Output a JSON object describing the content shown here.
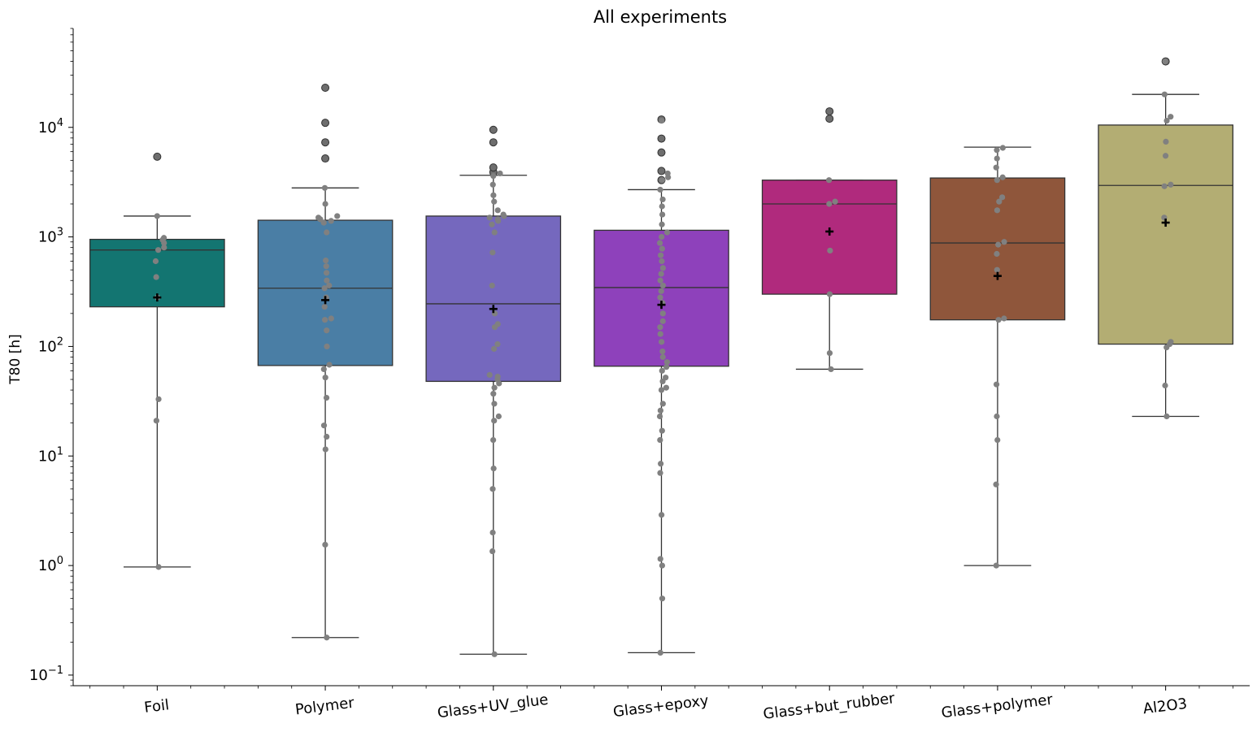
{
  "chart_data": {
    "type": "box",
    "title": "All experiments",
    "xlabel": "",
    "ylabel": "T80 [h]",
    "yscale": "log",
    "ylim": [
      0.08,
      80000
    ],
    "yticks": [
      {
        "value": 0.1,
        "base": "10",
        "exp": "−1"
      },
      {
        "value": 1,
        "base": "10",
        "exp": "0"
      },
      {
        "value": 10,
        "base": "10",
        "exp": "1"
      },
      {
        "value": 100,
        "base": "10",
        "exp": "2"
      },
      {
        "value": 1000,
        "base": "10",
        "exp": "3"
      },
      {
        "value": 10000,
        "base": "10",
        "exp": "4"
      }
    ],
    "categories": [
      "Foil",
      "Polymer",
      "Glass+UV_glue",
      "Glass+epoxy",
      "Glass+but_rubber",
      "Glass+polymer",
      "Al2O3"
    ],
    "colors": [
      "#137571",
      "#4a7ea5",
      "#7568be",
      "#8e41bb",
      "#b02a7d",
      "#8f563b",
      "#b3ad73"
    ],
    "point_color": "#808080",
    "mean_marker": "+",
    "boxes": [
      {
        "q1": 230,
        "median": 760,
        "q3": 950,
        "whisker_low": 0.97,
        "whisker_high": 1550,
        "mean": 280,
        "outliers": [
          5400
        ],
        "points": [
          0.97,
          21,
          33,
          280,
          430,
          600,
          760,
          800,
          880,
          940,
          980,
          1550
        ]
      },
      {
        "q1": 67,
        "median": 340,
        "q3": 1420,
        "whisker_low": 0.22,
        "whisker_high": 2800,
        "mean": 265,
        "outliers": [
          5200,
          7300,
          11000,
          23000
        ],
        "points": [
          0.22,
          1.55,
          11.5,
          15,
          19,
          34,
          52,
          62,
          68,
          100,
          140,
          175,
          180,
          230,
          280,
          340,
          360,
          400,
          470,
          540,
          610,
          1100,
          1350,
          1400,
          1450,
          1500,
          1550,
          2000,
          2800
        ]
      },
      {
        "q1": 48,
        "median": 245,
        "q3": 1550,
        "whisker_low": 0.155,
        "whisker_high": 3650,
        "mean": 220,
        "outliers": [
          3900,
          4300,
          7300,
          9500
        ],
        "points": [
          0.155,
          1.35,
          2,
          5,
          7.7,
          14,
          21,
          23,
          30,
          37,
          42,
          46,
          50,
          53,
          55,
          95,
          105,
          150,
          160,
          200,
          360,
          720,
          1100,
          1300,
          1400,
          1450,
          1500,
          1550,
          1600,
          1750,
          2100,
          2400,
          3000,
          3600,
          3800
        ]
      },
      {
        "q1": 66,
        "median": 345,
        "q3": 1150,
        "whisker_low": 0.16,
        "whisker_high": 2700,
        "mean": 240,
        "outliers": [
          3300,
          4000,
          5900,
          7900,
          11800
        ],
        "points": [
          0.16,
          0.5,
          1,
          1.15,
          2.9,
          7,
          8.5,
          14,
          17,
          23,
          26,
          30,
          40,
          42,
          48,
          52,
          60,
          65,
          72,
          80,
          90,
          110,
          130,
          150,
          170,
          200,
          250,
          280,
          320,
          360,
          400,
          460,
          520,
          600,
          680,
          780,
          880,
          1000,
          1100,
          1300,
          1600,
          1900,
          2200,
          2700,
          3300,
          3500,
          3800,
          11500
        ]
      },
      {
        "q1": 300,
        "median": 2000,
        "q3": 3300,
        "whisker_low": 62,
        "whisker_high": 3300,
        "mean": 1120,
        "outliers": [
          12000,
          14000
        ],
        "points": [
          62,
          87,
          300,
          750,
          2000,
          2100,
          3300
        ]
      },
      {
        "q1": 175,
        "median": 880,
        "q3": 3450,
        "whisker_low": 1.0,
        "whisker_high": 6600,
        "mean": 440,
        "outliers": [],
        "points": [
          1.0,
          5.5,
          14,
          23,
          45,
          175,
          180,
          500,
          700,
          850,
          900,
          1750,
          2100,
          2300,
          3300,
          3500,
          4300,
          5200,
          6200,
          6500
        ]
      },
      {
        "q1": 105,
        "median": 2950,
        "q3": 10500,
        "whisker_low": 23,
        "whisker_high": 20000,
        "mean": 1350,
        "outliers": [
          40000
        ],
        "points": [
          23,
          44,
          98,
          105,
          110,
          1500,
          2900,
          3000,
          5500,
          7400,
          11500,
          12500,
          20000,
          40000
        ]
      }
    ]
  }
}
